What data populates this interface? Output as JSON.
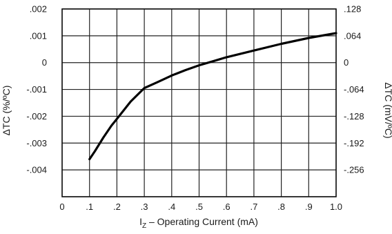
{
  "chart_data": {
    "type": "line",
    "title": "",
    "xlabel": {
      "main": "I",
      "sub": "Z",
      "rest": " – Operating Current (mA)"
    },
    "ylabel_left": "ΔTC (%/ºC)",
    "ylabel_right": "ΔTC (mV/ºC)",
    "xlim": [
      0,
      1.0
    ],
    "ylim": [
      -0.005,
      0.002
    ],
    "grid": true,
    "x_ticks": [
      {
        "value": 0,
        "label": "0"
      },
      {
        "value": 0.1,
        "label": ".1"
      },
      {
        "value": 0.2,
        "label": ".2"
      },
      {
        "value": 0.3,
        "label": ".3"
      },
      {
        "value": 0.4,
        "label": ".4"
      },
      {
        "value": 0.5,
        "label": ".5"
      },
      {
        "value": 0.6,
        "label": ".6"
      },
      {
        "value": 0.7,
        "label": ".7"
      },
      {
        "value": 0.8,
        "label": ".8"
      },
      {
        "value": 0.9,
        "label": ".9"
      },
      {
        "value": 1.0,
        "label": "1.0"
      }
    ],
    "y_ticks_left": [
      {
        "value": 0.002,
        "label": ".002"
      },
      {
        "value": 0.001,
        "label": ".001"
      },
      {
        "value": 0,
        "label": "0"
      },
      {
        "value": -0.001,
        "label": "-.001"
      },
      {
        "value": -0.002,
        "label": "-.002"
      },
      {
        "value": -0.003,
        "label": "-.003"
      },
      {
        "value": -0.004,
        "label": "-.004"
      }
    ],
    "y_ticks_right": [
      {
        "value": 0.002,
        "label": ".128"
      },
      {
        "value": 0.001,
        "label": ".064"
      },
      {
        "value": 0,
        "label": "0"
      },
      {
        "value": -0.001,
        "label": "-.064"
      },
      {
        "value": -0.002,
        "label": "-.128"
      },
      {
        "value": -0.003,
        "label": "-.192"
      },
      {
        "value": -0.004,
        "label": "-.256"
      }
    ],
    "series": [
      {
        "x": [
          0.1,
          0.12,
          0.15,
          0.18,
          0.2,
          0.25,
          0.3,
          0.35,
          0.4,
          0.45,
          0.5,
          0.55,
          0.6,
          0.7,
          0.8,
          0.9,
          1.0
        ],
        "y": [
          -0.0036,
          -0.0033,
          -0.0028,
          -0.00235,
          -0.0021,
          -0.00145,
          -0.00095,
          -0.00072,
          -0.00048,
          -0.00028,
          -0.0001,
          5e-05,
          0.0002,
          0.00045,
          0.0007,
          0.00092,
          0.0011
        ]
      }
    ],
    "colors": {
      "line": "#000000",
      "grid": "#222222",
      "frame": "#111111"
    }
  }
}
